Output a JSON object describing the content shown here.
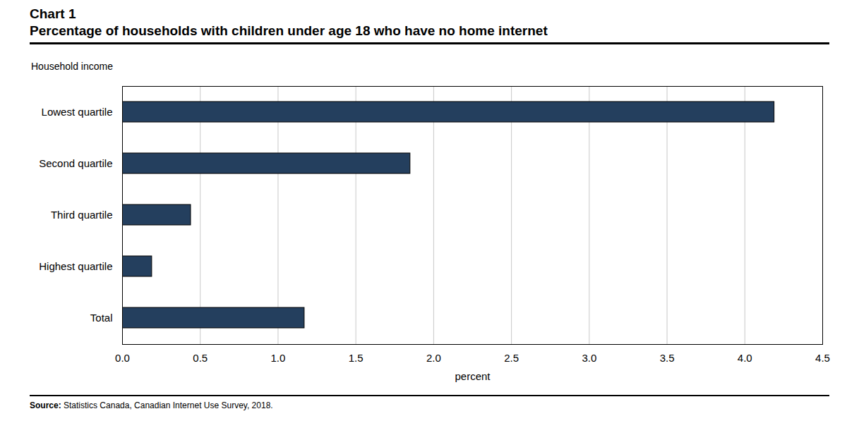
{
  "chart_data": {
    "type": "bar",
    "orientation": "horizontal",
    "title": "Chart 1",
    "subtitle": "Percentage of households with children under age 18 who have no home internet",
    "ylabel": "Household income",
    "xlabel": "percent",
    "categories": [
      "Lowest quartile",
      "Second quartile",
      "Third quartile",
      "Highest quartile",
      "Total"
    ],
    "values": [
      4.19,
      1.85,
      0.44,
      0.19,
      1.17
    ],
    "color": "#243f5e",
    "xlim": [
      0,
      4.5
    ],
    "xticks": [
      {
        "value": 0,
        "label": "0.0"
      },
      0.5,
      {
        "value": 1,
        "label": "1.0"
      },
      1.5,
      {
        "value": 2,
        "label": "2.0"
      },
      2.5,
      {
        "value": 3,
        "label": "3.0"
      },
      3.5,
      {
        "value": 4,
        "label": "4.0"
      },
      4.5
    ],
    "grid": true,
    "source": "Source: Statistics Canada, Canadian Internet Use Survey, 2018."
  }
}
